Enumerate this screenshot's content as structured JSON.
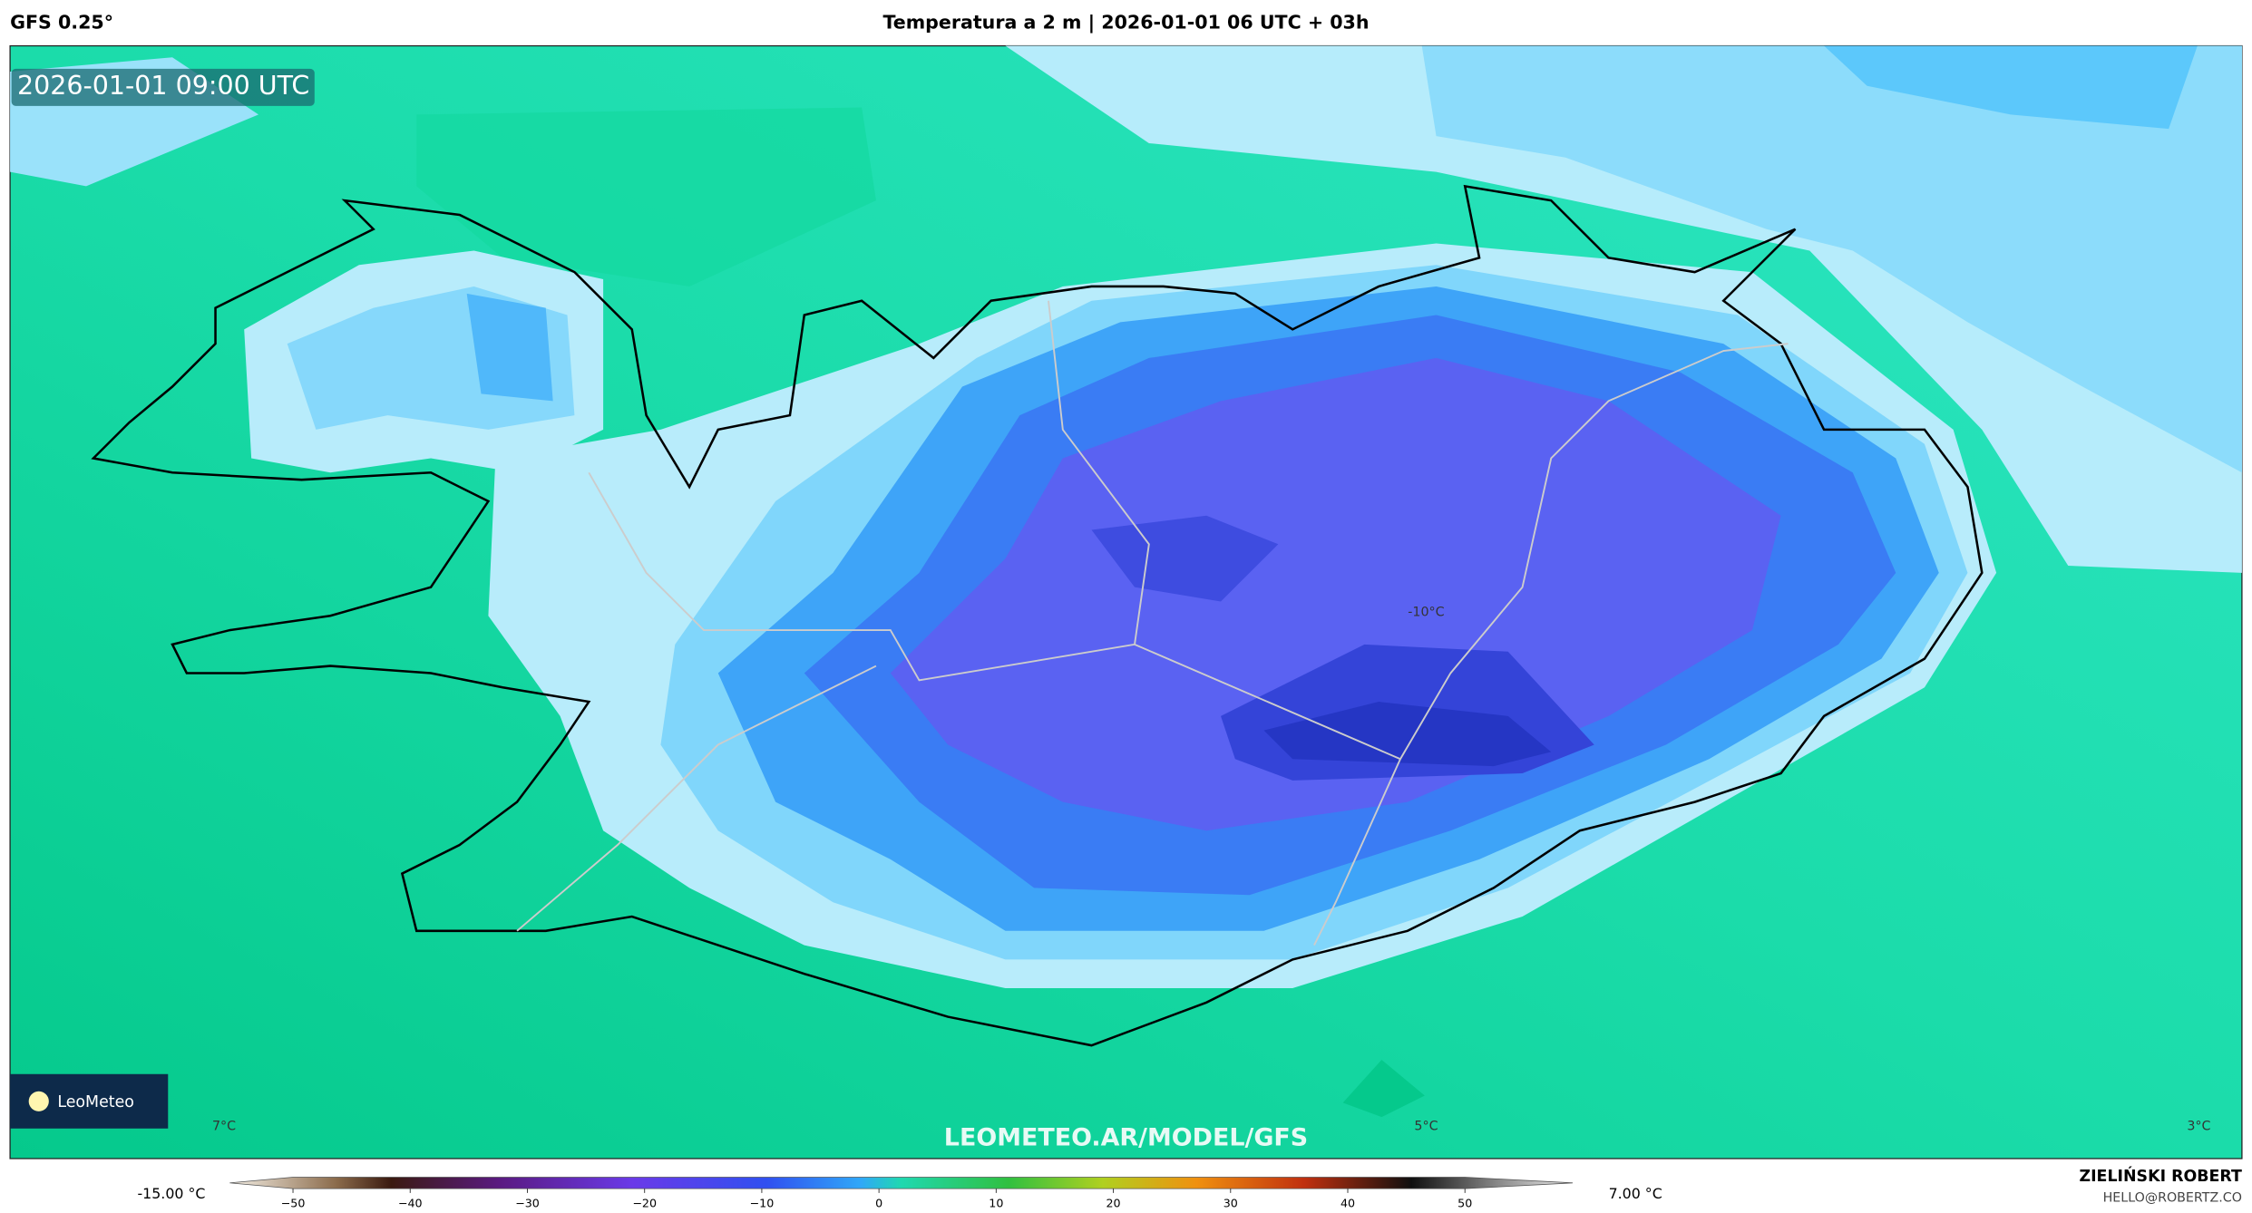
{
  "header": {
    "model": "GFS 0.25°",
    "title": "Temperatura a 2 m | 2026-01-01 06 UTC + 03h"
  },
  "map": {
    "timestamp": "2026-01-01 09:00 UTC",
    "labels": [
      "-10°C",
      "7°C",
      "5°C",
      "3°C"
    ],
    "watermark": "LEOMETEO.AR/MODEL/GFS",
    "logo": "LeoMeteo"
  },
  "colorbar": {
    "min_label": "-15.00 °C",
    "max_label": "7.00 °C",
    "range": [
      -50,
      50
    ],
    "ticks": [
      {
        "value": -50,
        "label": "−50"
      },
      {
        "value": -40,
        "label": "−40"
      },
      {
        "value": -30,
        "label": "−30"
      },
      {
        "value": -20,
        "label": "−20"
      },
      {
        "value": -10,
        "label": "−10"
      },
      0,
      10,
      20,
      30,
      40,
      50
    ]
  },
  "footer": {
    "author": "ZIELIŃSKI ROBERT",
    "email": "HELLO@ROBERTZ.CO"
  }
}
